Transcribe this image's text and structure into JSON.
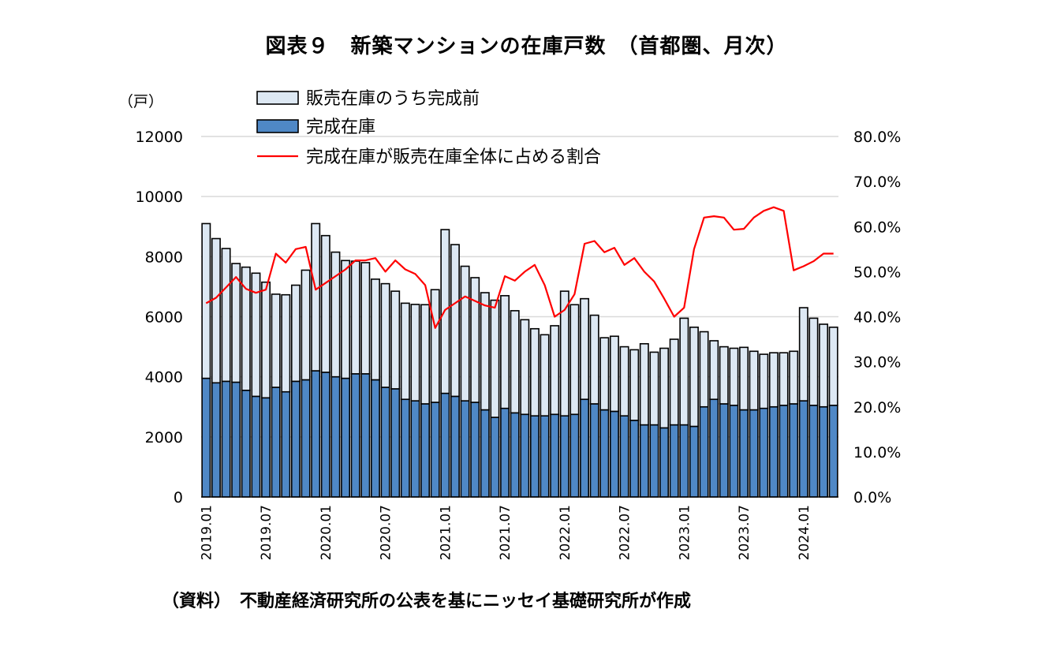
{
  "title": "図表９　新築マンションの在庫戸数　（首都圏、月次）",
  "source": "（資料）　不動産経済研究所の公表を基にニッセイ基礎研究所が作成",
  "colors": {
    "before_completion": "#dde8f3",
    "completed": "#4f88c6",
    "ratio_line": "#ff0000",
    "bar_outline": "#000000",
    "grid": "#d9d9d9"
  },
  "chart_data": {
    "type": "bar",
    "combo": "stacked bar + line (secondary axis)",
    "y_unit_label": "（戸）",
    "ylim": [
      0,
      12000
    ],
    "y_ticks": [
      "0",
      "2000",
      "4000",
      "6000",
      "8000",
      "10000",
      "12000"
    ],
    "y2lim": [
      0,
      80
    ],
    "y2_ticks": [
      "0.0%",
      "10.0%",
      "20.0%",
      "30.0%",
      "40.0%",
      "50.0%",
      "60.0%",
      "70.0%",
      "80.0%"
    ],
    "grid": "horizontal",
    "legend_position": "top-left",
    "x_tick_labels": [
      {
        "index": 0,
        "label": "2019.01"
      },
      {
        "index": 6,
        "label": "2019.07"
      },
      {
        "index": 12,
        "label": "2020.01"
      },
      {
        "index": 18,
        "label": "2020.07"
      },
      {
        "index": 24,
        "label": "2021.01"
      },
      {
        "index": 30,
        "label": "2021.07"
      },
      {
        "index": 36,
        "label": "2022.01"
      },
      {
        "index": 42,
        "label": "2022.07"
      },
      {
        "index": 48,
        "label": "2023.01"
      },
      {
        "index": 54,
        "label": "2023.07"
      },
      {
        "index": 60,
        "label": "2024.01"
      }
    ],
    "series": [
      {
        "name": "販売在庫のうち完成前",
        "kind": "bar-stack-top",
        "values": [
          5150,
          4800,
          4420,
          3950,
          4100,
          4100,
          3850,
          3100,
          3230,
          3200,
          3650,
          4900,
          4550,
          4150,
          3920,
          3750,
          3700,
          3350,
          3450,
          3250,
          3200,
          3210,
          3300,
          3750,
          5450,
          5050,
          4480,
          4150,
          3900,
          3900,
          3750,
          3400,
          3150,
          2900,
          2700,
          2950,
          4150,
          3650,
          3350,
          2950,
          2400,
          2500,
          2300,
          2350,
          2700,
          2420,
          2650,
          2850,
          3550,
          3300,
          2500,
          1950,
          1900,
          1900,
          2080,
          1950,
          1800,
          1800,
          1750,
          1750,
          3100,
          2900,
          2750,
          2600
        ]
      },
      {
        "name": "完成在庫",
        "kind": "bar-stack-bottom",
        "values": [
          3950,
          3800,
          3850,
          3820,
          3550,
          3350,
          3300,
          3650,
          3500,
          3850,
          3900,
          4200,
          4150,
          4000,
          3950,
          4100,
          4100,
          3900,
          3650,
          3600,
          3250,
          3200,
          3100,
          3150,
          3450,
          3350,
          3200,
          3150,
          2900,
          2650,
          2950,
          2800,
          2750,
          2700,
          2700,
          2750,
          2700,
          2750,
          3250,
          3100,
          2900,
          2850,
          2700,
          2550,
          2400,
          2400,
          2300,
          2400,
          2400,
          2350,
          3000,
          3250,
          3100,
          3050,
          2900,
          2900,
          2950,
          3000,
          3050,
          3100,
          3200,
          3050,
          3000,
          3050
        ]
      },
      {
        "name": "完成在庫が販売在庫全体に占める割合",
        "kind": "line",
        "axis": "secondary",
        "values": [
          43.0,
          44.2,
          46.5,
          48.8,
          46.2,
          45.3,
          46.0,
          54.0,
          52.0,
          55.0,
          55.5,
          46.0,
          47.5,
          49.0,
          50.5,
          52.5,
          52.5,
          53.0,
          50.0,
          52.5,
          50.5,
          49.5,
          47.0,
          37.5,
          41.5,
          43.0,
          44.5,
          43.5,
          42.5,
          42.0,
          49.0,
          48.0,
          50.0,
          51.5,
          47.0,
          40.0,
          41.5,
          45.0,
          56.2,
          56.8,
          54.3,
          55.3,
          51.5,
          53.0,
          50.0,
          47.8,
          44.0,
          40.0,
          42.0,
          55.0,
          62.0,
          62.3,
          62.0,
          59.3,
          59.5,
          62.0,
          63.5,
          64.3,
          63.5,
          50.3,
          51.2,
          52.3,
          54.0,
          54.0
        ]
      }
    ]
  }
}
